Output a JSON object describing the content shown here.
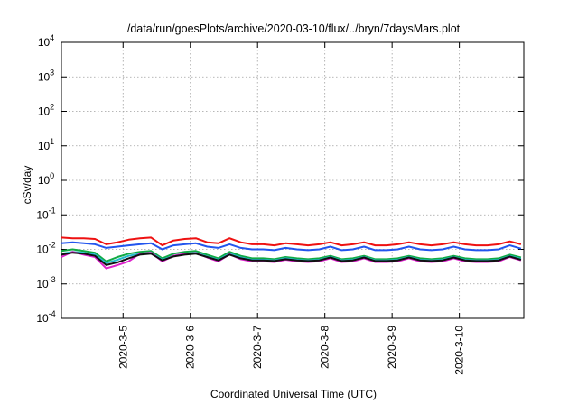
{
  "chart_data": {
    "type": "line",
    "title": "/data/run/goesPlots/archive/2020-03-10/flux/../bryn/7daysMars.plot",
    "xlabel": "Coordinated Universal Time (UTC)",
    "ylabel": "cSv/day",
    "y_scale": "log",
    "ylim": [
      0.0001,
      10000
    ],
    "xlim": [
      "2020-03-04 02:00",
      "2020-03-10 23:00"
    ],
    "grid": true,
    "legend": "none",
    "y_ticks": [
      {
        "base": "10",
        "exp": "-4"
      },
      {
        "base": "10",
        "exp": "-3"
      },
      {
        "base": "10",
        "exp": "-2"
      },
      {
        "base": "10",
        "exp": "-1"
      },
      {
        "base": "10",
        "exp": "0"
      },
      {
        "base": "10",
        "exp": "1"
      },
      {
        "base": "10",
        "exp": "2"
      },
      {
        "base": "10",
        "exp": "3"
      },
      {
        "base": "10",
        "exp": "4"
      }
    ],
    "x_ticks": [
      "2020-3-5",
      "2020-3-6",
      "2020-3-7",
      "2020-3-8",
      "2020-3-9",
      "2020-3-10"
    ],
    "x": [
      "2020-03-04 02:00",
      "2020-03-04 06:00",
      "2020-03-04 10:00",
      "2020-03-04 14:00",
      "2020-03-04 18:00",
      "2020-03-04 22:00",
      "2020-03-05 02:00",
      "2020-03-05 06:00",
      "2020-03-05 10:00",
      "2020-03-05 14:00",
      "2020-03-05 18:00",
      "2020-03-05 22:00",
      "2020-03-06 02:00",
      "2020-03-06 06:00",
      "2020-03-06 10:00",
      "2020-03-06 14:00",
      "2020-03-06 18:00",
      "2020-03-06 22:00",
      "2020-03-07 02:00",
      "2020-03-07 06:00",
      "2020-03-07 10:00",
      "2020-03-07 14:00",
      "2020-03-07 18:00",
      "2020-03-07 22:00",
      "2020-03-08 02:00",
      "2020-03-08 06:00",
      "2020-03-08 10:00",
      "2020-03-08 14:00",
      "2020-03-08 18:00",
      "2020-03-08 22:00",
      "2020-03-09 02:00",
      "2020-03-09 06:00",
      "2020-03-09 10:00",
      "2020-03-09 14:00",
      "2020-03-09 18:00",
      "2020-03-09 22:00",
      "2020-03-10 02:00",
      "2020-03-10 06:00",
      "2020-03-10 10:00",
      "2020-03-10 14:00",
      "2020-03-10 18:00",
      "2020-03-10 22:00"
    ],
    "series": [
      {
        "color": "#ee1111",
        "values": [
          0.022,
          0.021,
          0.021,
          0.02,
          0.014,
          0.016,
          0.019,
          0.021,
          0.022,
          0.013,
          0.018,
          0.02,
          0.021,
          0.016,
          0.015,
          0.021,
          0.016,
          0.014,
          0.014,
          0.013,
          0.015,
          0.014,
          0.013,
          0.014,
          0.016,
          0.013,
          0.014,
          0.016,
          0.013,
          0.013,
          0.014,
          0.016,
          0.014,
          0.013,
          0.014,
          0.016,
          0.014,
          0.013,
          0.013,
          0.014,
          0.017,
          0.014
        ]
      },
      {
        "color": "#2255ee",
        "values": [
          0.015,
          0.016,
          0.015,
          0.014,
          0.011,
          0.012,
          0.013,
          0.014,
          0.015,
          0.01,
          0.013,
          0.014,
          0.015,
          0.012,
          0.011,
          0.014,
          0.011,
          0.01,
          0.01,
          0.0095,
          0.011,
          0.01,
          0.0095,
          0.01,
          0.012,
          0.0095,
          0.01,
          0.012,
          0.0095,
          0.0095,
          0.01,
          0.012,
          0.01,
          0.0095,
          0.01,
          0.012,
          0.01,
          0.0095,
          0.0095,
          0.01,
          0.013,
          0.0105
        ]
      },
      {
        "color": "#11aa44",
        "values": [
          0.009,
          0.01,
          0.009,
          0.008,
          0.0045,
          0.006,
          0.0075,
          0.0085,
          0.009,
          0.0055,
          0.0075,
          0.0085,
          0.009,
          0.007,
          0.0055,
          0.0085,
          0.0065,
          0.0055,
          0.0055,
          0.0052,
          0.006,
          0.0055,
          0.0052,
          0.0055,
          0.0065,
          0.0052,
          0.0055,
          0.0065,
          0.0052,
          0.0052,
          0.0055,
          0.0065,
          0.0055,
          0.0052,
          0.0055,
          0.0065,
          0.0055,
          0.0052,
          0.0052,
          0.0055,
          0.007,
          0.0058
        ]
      },
      {
        "color": "#22bbcc",
        "values": [
          0.0075,
          0.0085,
          0.008,
          0.007,
          0.004,
          0.005,
          0.0065,
          0.0075,
          0.008,
          0.005,
          0.0065,
          0.0075,
          0.008,
          0.0062,
          0.005,
          0.0075,
          0.0058,
          0.005,
          0.005,
          0.0048,
          0.0055,
          0.005,
          0.0048,
          0.005,
          0.006,
          0.0048,
          0.005,
          0.006,
          0.0048,
          0.0048,
          0.005,
          0.006,
          0.005,
          0.0048,
          0.005,
          0.006,
          0.005,
          0.0048,
          0.0048,
          0.005,
          0.0064,
          0.0053
        ]
      },
      {
        "color": "#dd22cc",
        "values": [
          0.006,
          0.0085,
          0.007,
          0.006,
          0.0028,
          0.0035,
          0.0045,
          0.0075,
          0.008,
          0.0045,
          0.0065,
          0.0075,
          0.0078,
          0.0058,
          0.0045,
          0.0072,
          0.0052,
          0.0045,
          0.0045,
          0.0043,
          0.005,
          0.0045,
          0.0043,
          0.0045,
          0.0055,
          0.0043,
          0.0045,
          0.0055,
          0.0043,
          0.0043,
          0.0045,
          0.0055,
          0.0045,
          0.0043,
          0.0045,
          0.0055,
          0.0045,
          0.0043,
          0.0043,
          0.0045,
          0.006,
          0.0048
        ]
      },
      {
        "color": "#111111",
        "values": [
          0.007,
          0.008,
          0.0075,
          0.0065,
          0.0035,
          0.0042,
          0.0055,
          0.007,
          0.0075,
          0.0048,
          0.0062,
          0.007,
          0.0075,
          0.006,
          0.0048,
          0.007,
          0.0055,
          0.0048,
          0.0048,
          0.0046,
          0.0052,
          0.0048,
          0.0046,
          0.0048,
          0.0058,
          0.0046,
          0.0048,
          0.0058,
          0.0046,
          0.0046,
          0.0048,
          0.0058,
          0.0048,
          0.0046,
          0.0048,
          0.0058,
          0.0048,
          0.0046,
          0.0046,
          0.0048,
          0.0062,
          0.005
        ]
      }
    ]
  }
}
